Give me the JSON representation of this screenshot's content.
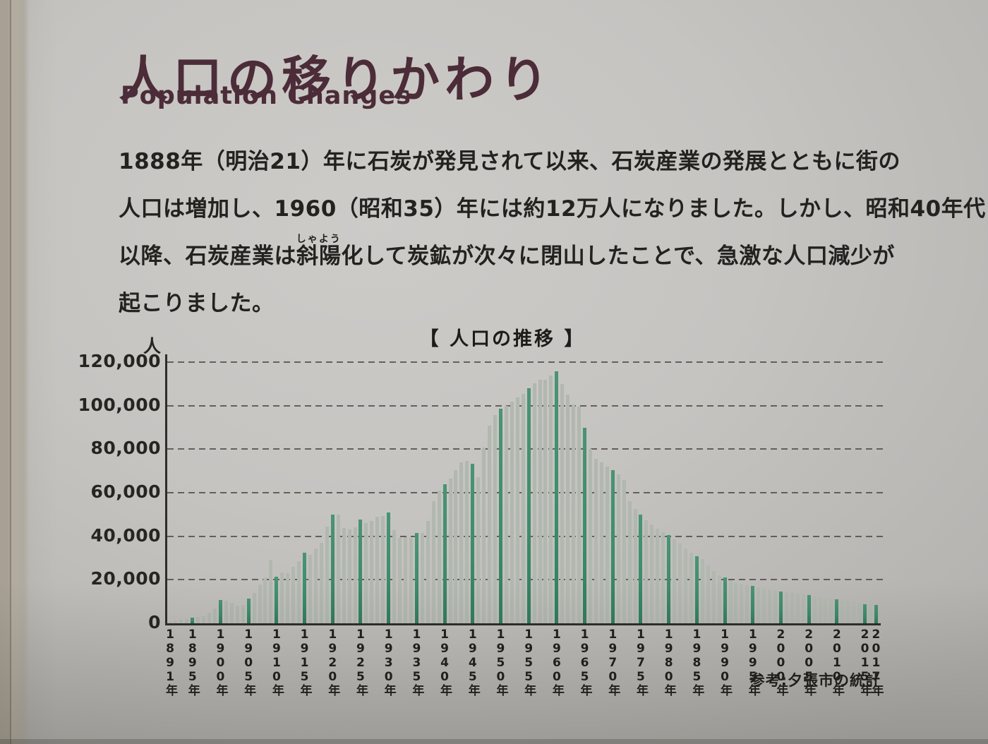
{
  "panel": {
    "title": "人口の移りかわり",
    "subtitle": "Population Changes"
  },
  "paragraph": {
    "line1": "1888年（明治21）年に石炭が発見されて以来、石炭産業の発展とともに街の",
    "line2": "人口は増加し、1960（昭和35）年には約12万人になりました。しかし、昭和40年代",
    "line3_pre": "以降、石炭産業は",
    "line3_ruby_base": "斜陽",
    "line3_ruby_text": "しゃよう",
    "line3_post": "化して炭鉱が次々に閉山したことで、急激な人口減少が",
    "line4": "起こりました。"
  },
  "chart": {
    "title": "【 人口の推移 】",
    "y_unit": "人",
    "source_note": "参考:夕張市の統計"
  },
  "chart_data": {
    "type": "bar",
    "title": "人口の推移",
    "ylabel": "人",
    "ylim": [
      0,
      120000
    ],
    "grid": "horizontal dashed lines every 20,000",
    "legend": "none",
    "year_start": 1891,
    "year_end": 2017,
    "x_tick_labels": [
      "1891年",
      "1895年",
      "1900年",
      "1905年",
      "1910年",
      "1915年",
      "1920年",
      "1925年",
      "1930年",
      "1935年",
      "1940年",
      "1945年",
      "1950年",
      "1955年",
      "1960年",
      "1965年",
      "1970年",
      "1975年",
      "1980年",
      "1985年",
      "1990年",
      "1995年",
      "2000年",
      "2005年",
      "2010年",
      "2015年",
      "2017年"
    ],
    "y_ticks": [
      {
        "label": "120,000",
        "v": 120000
      },
      {
        "label": "100,000",
        "v": 100000
      },
      {
        "label": "80,000",
        "v": 80000
      },
      {
        "label": "60,000",
        "v": 60000
      },
      {
        "label": "40,000",
        "v": 40000
      },
      {
        "label": "20,000",
        "v": 20000
      },
      {
        "label": "0",
        "v": 0
      }
    ],
    "highlight_years": [
      1895,
      1900,
      1905,
      1910,
      1915,
      1920,
      1925,
      1930,
      1935,
      1940,
      1945,
      1950,
      1955,
      1960,
      1965,
      1970,
      1975,
      1980,
      1985,
      1990,
      1995,
      2000,
      2005,
      2010,
      2015,
      2017
    ],
    "colors": {
      "bar_light": "#b1b8af",
      "bar_dark": "#3d8c69",
      "title_accent": "#4b2c38",
      "axis": "#2e2d2b"
    },
    "values": [
      700,
      1300,
      1700,
      2000,
      2600,
      3000,
      3300,
      5000,
      6800,
      10800,
      10500,
      9400,
      8000,
      8500,
      11300,
      14000,
      18000,
      21000,
      29300,
      21500,
      23500,
      23000,
      26000,
      28700,
      32300,
      31500,
      34300,
      37100,
      44400,
      50100,
      49900,
      43800,
      43100,
      44100,
      47800,
      46200,
      47000,
      48900,
      49400,
      50800,
      42700,
      39200,
      39600,
      39200,
      41500,
      41500,
      47100,
      56100,
      61000,
      63900,
      66500,
      70500,
      74000,
      74500,
      73400,
      67200,
      80700,
      90800,
      95800,
      98600,
      99800,
      102000,
      103700,
      105400,
      108100,
      110400,
      111900,
      111900,
      113800,
      115800,
      110100,
      105200,
      100500,
      99500,
      89900,
      80000,
      75500,
      73800,
      72000,
      70500,
      68500,
      66000,
      56000,
      52500,
      50000,
      47500,
      45500,
      43500,
      42000,
      40500,
      38500,
      36500,
      34500,
      32500,
      30800,
      29500,
      26500,
      24000,
      22000,
      21000,
      19800,
      18800,
      18000,
      17500,
      17100,
      16400,
      15800,
      15300,
      14900,
      14600,
      14200,
      13900,
      13600,
      13300,
      13000,
      12400,
      11900,
      11500,
      11100,
      10900,
      10500,
      10100,
      9700,
      9300,
      8900,
      8600,
      8300
    ]
  }
}
